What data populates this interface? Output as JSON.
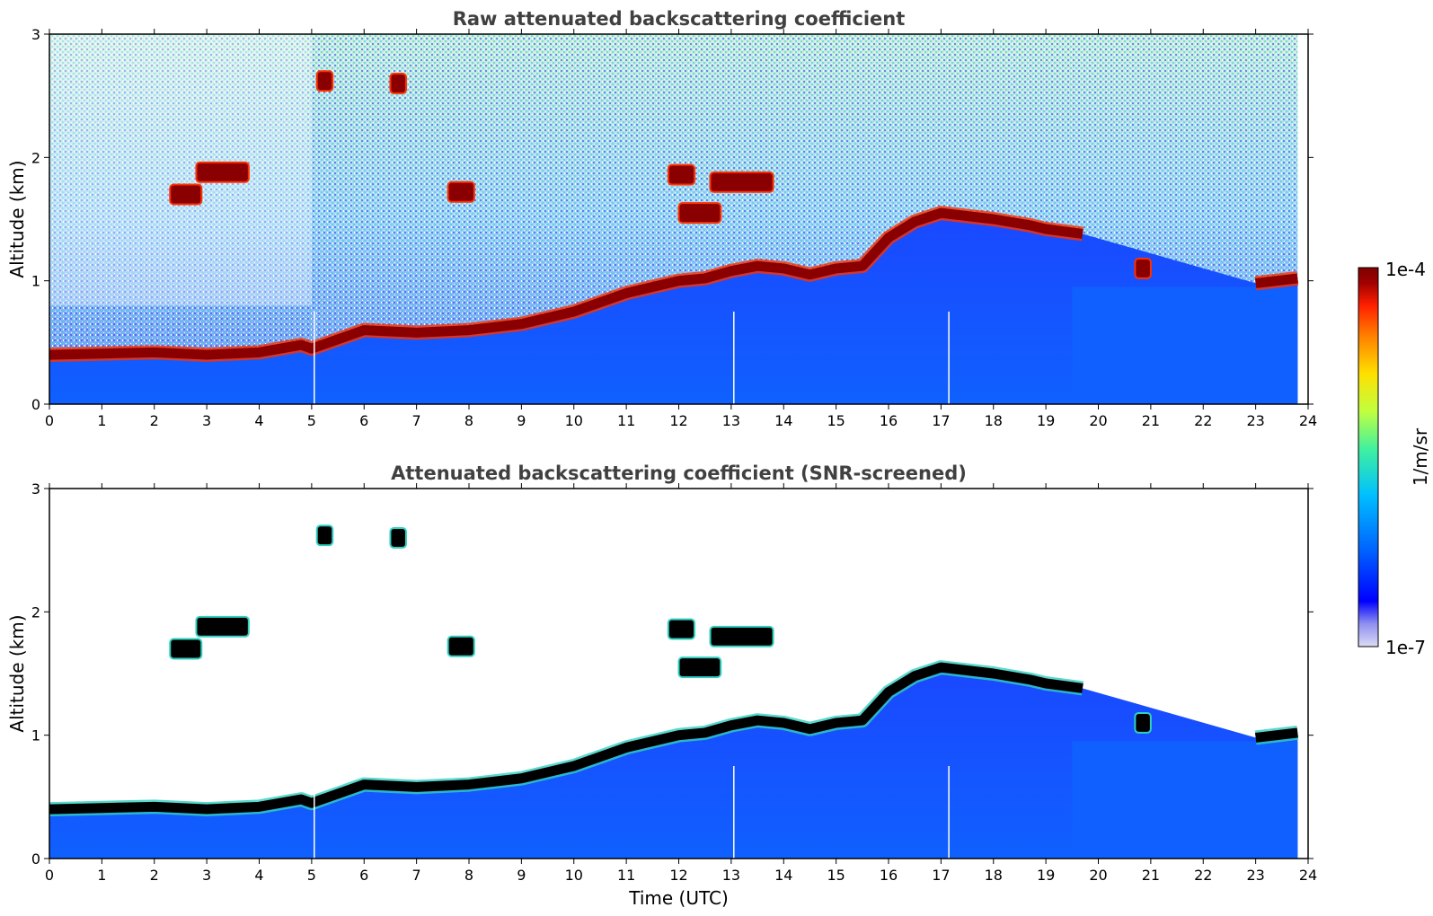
{
  "chart_data": [
    {
      "type": "heatmap",
      "title": "Raw attenuated backscattering coefficient",
      "xlabel": "",
      "ylabel": "Altitude (km)",
      "xlim": [
        0,
        24
      ],
      "ylim": [
        0,
        3
      ],
      "xticks": [
        "0",
        "1",
        "2",
        "3",
        "4",
        "5",
        "6",
        "7",
        "8",
        "9",
        "10",
        "11",
        "12",
        "13",
        "14",
        "15",
        "16",
        "17",
        "18",
        "19",
        "20",
        "21",
        "22",
        "23",
        "24"
      ],
      "yticks": [
        "0",
        "1",
        "2",
        "3"
      ],
      "screened": false
    },
    {
      "type": "heatmap",
      "title": "Attenuated backscattering coefficient (SNR-screened)",
      "xlabel": "Time (UTC)",
      "ylabel": "Altitude (km)",
      "xlim": [
        0,
        24
      ],
      "ylim": [
        0,
        3
      ],
      "xticks": [
        "0",
        "1",
        "2",
        "3",
        "4",
        "5",
        "6",
        "7",
        "8",
        "9",
        "10",
        "11",
        "12",
        "13",
        "14",
        "15",
        "16",
        "17",
        "18",
        "19",
        "20",
        "21",
        "22",
        "23",
        "24"
      ],
      "yticks": [
        "0",
        "1",
        "2",
        "3"
      ],
      "screened": true
    }
  ],
  "colorbar": {
    "label": "1/m/sr",
    "max_label": "1e-4",
    "min_label": "1e-7",
    "scale": "log",
    "colors": [
      "#dcdcf5",
      "#9090f0",
      "#0000ff",
      "#0060ff",
      "#00c0ff",
      "#40f0a0",
      "#c0ff40",
      "#ffe000",
      "#ff8000",
      "#ff2000",
      "#a00000",
      "#800000"
    ]
  },
  "cloud_layer": {
    "time_utc": [
      0,
      1,
      2,
      3,
      4,
      4.8,
      5,
      6,
      7,
      8,
      9,
      10,
      11,
      12,
      12.5,
      13,
      13.5,
      14,
      14.5,
      15,
      15.5,
      16,
      16.5,
      17,
      18,
      18.7,
      19,
      19.7,
      20,
      21,
      22,
      23,
      23.8
    ],
    "base_km": [
      0.4,
      0.41,
      0.42,
      0.4,
      0.42,
      0.48,
      0.45,
      0.6,
      0.58,
      0.6,
      0.65,
      0.75,
      0.9,
      1.0,
      1.02,
      1.08,
      1.12,
      1.1,
      1.05,
      1.1,
      1.12,
      1.35,
      1.48,
      1.55,
      1.5,
      1.45,
      1.42,
      1.38,
      null,
      null,
      null,
      0.98,
      1.02
    ]
  },
  "elevated_clouds": [
    {
      "t0": 2.3,
      "t1": 2.9,
      "alt_km": 1.7
    },
    {
      "t0": 2.8,
      "t1": 3.8,
      "alt_km": 1.88
    },
    {
      "t0": 5.1,
      "t1": 5.4,
      "alt_km": 2.62
    },
    {
      "t0": 6.5,
      "t1": 6.8,
      "alt_km": 2.6
    },
    {
      "t0": 7.6,
      "t1": 8.1,
      "alt_km": 1.72
    },
    {
      "t0": 11.8,
      "t1": 12.3,
      "alt_km": 1.86
    },
    {
      "t0": 12.0,
      "t1": 12.8,
      "alt_km": 1.55
    },
    {
      "t0": 12.6,
      "t1": 13.8,
      "alt_km": 1.8
    },
    {
      "t0": 20.7,
      "t1": 21.0,
      "alt_km": 1.1
    }
  ]
}
